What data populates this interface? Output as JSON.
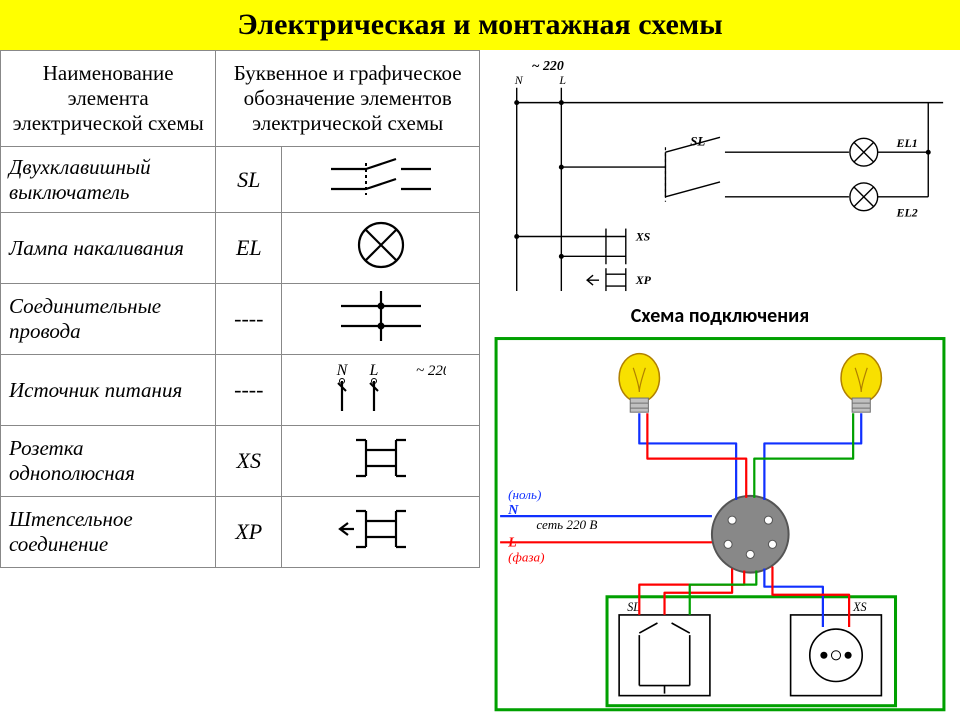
{
  "header": {
    "title": "Электрическая и монтажная схемы",
    "bg": "#ffff00",
    "fg": "#000000"
  },
  "table": {
    "border_color": "#888888",
    "head_col1": "Наименование элемента электрической схемы",
    "head_col2": "Буквенное и графическое обозначение элементов электрической схемы",
    "rows": [
      {
        "name": "Двухклавишный выключатель",
        "code": "SL",
        "symbol": "switch2"
      },
      {
        "name": "Лампа накаливания",
        "code": "EL",
        "symbol": "lamp"
      },
      {
        "name": "Соединительные провода",
        "code": "----",
        "symbol": "wires"
      },
      {
        "name": "Источник питания",
        "code": "----",
        "symbol": "power"
      },
      {
        "name": "Розетка однополюсная",
        "code": "XS",
        "symbol": "socket"
      },
      {
        "name": "Штепсельное соединение",
        "code": "XP",
        "symbol": "plug"
      }
    ]
  },
  "schematic": {
    "title_voltage": "~ 220",
    "labels": {
      "N": "N",
      "L": "L",
      "SL": "SL",
      "EL1": "EL1",
      "EL2": "EL2",
      "XS": "XS",
      "XP": "XP"
    },
    "line_color": "#000000",
    "line_width": 1.4
  },
  "wiring": {
    "title": "Схема подключения",
    "border_color": "#00a000",
    "border_width": 3,
    "junction_fill": "#888888",
    "junction_stroke": "#555555",
    "bulb_fill": "#f8e000",
    "bulb_stroke": "#b08000",
    "colors": {
      "neutral": "#1030ff",
      "phase": "#ff0000",
      "switch_leg": "#00a000"
    },
    "line_width": 2.2,
    "labels": {
      "N": "N",
      "L": "L",
      "null_ru": "(ноль)",
      "phase_ru": "(фаза)",
      "net": "сеть 220 В",
      "SL": "SL",
      "XS": "XS"
    }
  }
}
